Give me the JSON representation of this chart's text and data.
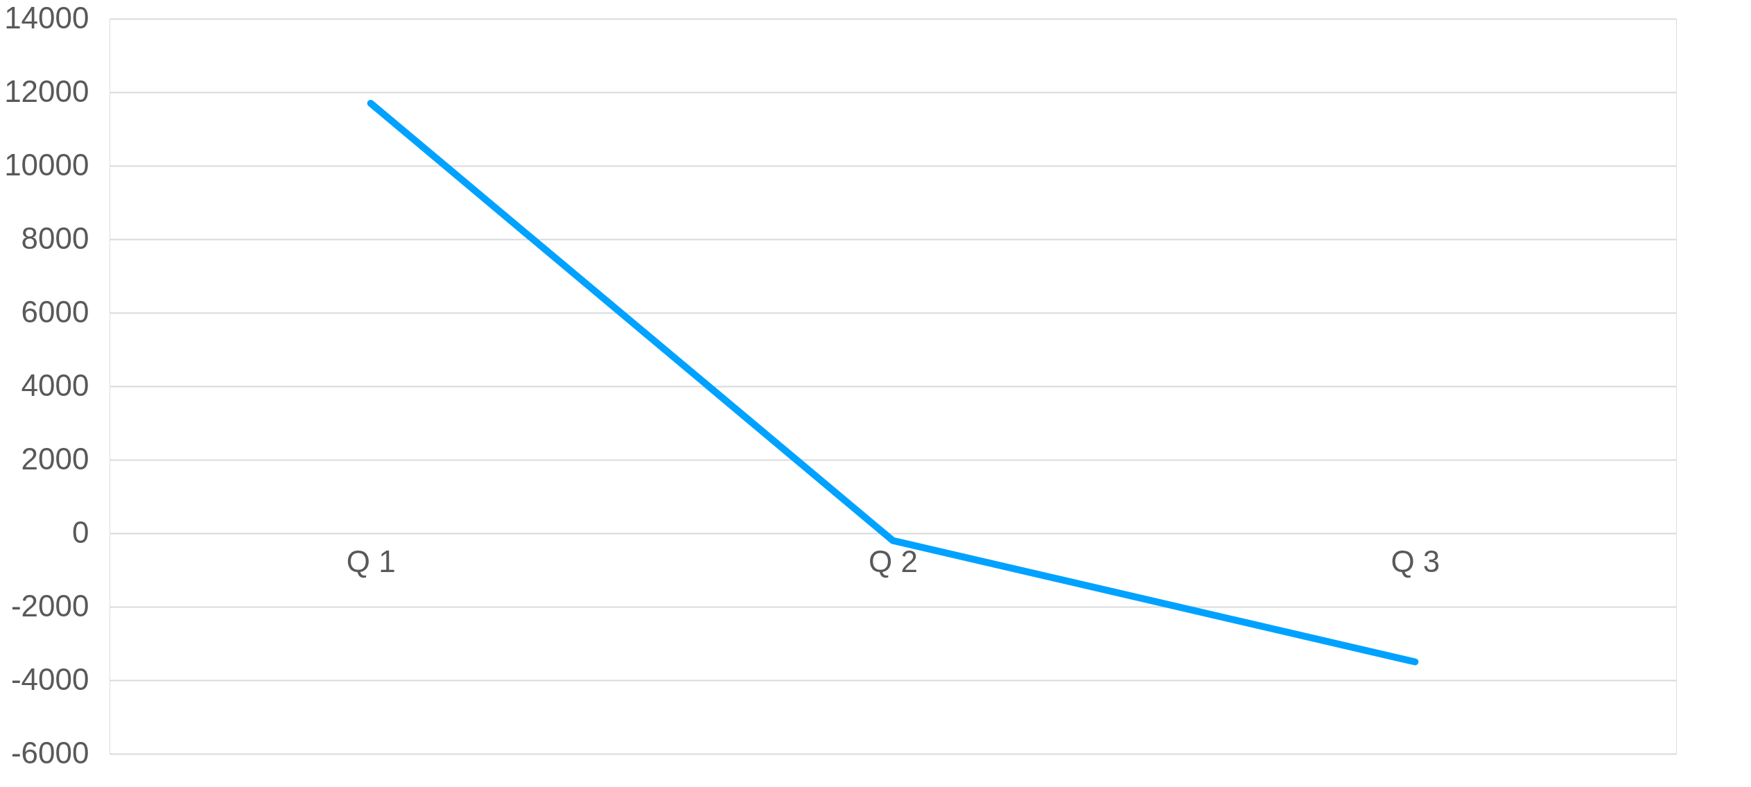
{
  "chart_data": {
    "type": "line",
    "categories": [
      "Q 1",
      "Q 2",
      "Q 3"
    ],
    "series": [
      {
        "color": "#00a2ff",
        "values": [
          11700,
          -200,
          -3500
        ]
      }
    ],
    "ylim": [
      -6000,
      14000
    ],
    "yticks": [
      -6000,
      -4000,
      -2000,
      0,
      2000,
      4000,
      6000,
      8000,
      10000,
      12000,
      14000
    ],
    "grid": "y",
    "marker": "none",
    "line_style": "solid"
  }
}
